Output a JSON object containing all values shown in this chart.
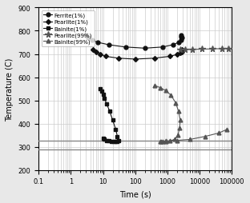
{
  "xlabel": "Time (s)",
  "ylabel": "Temperature (C)",
  "xlim": [
    0.1,
    100000
  ],
  "ylim": [
    200,
    900
  ],
  "yticks": [
    200,
    300,
    400,
    500,
    600,
    700,
    800,
    900
  ],
  "Ms": 325,
  "Mf": 290,
  "ferrite_1pct_t": [
    3.0,
    3.5,
    4.5,
    7.0,
    15.0,
    50.0,
    200.0,
    700.0,
    1500.0,
    2200.0,
    2600.0,
    2800.0,
    2700.0,
    2600.0
  ],
  "ferrite_1pct_T": [
    780,
    770,
    760,
    750,
    740,
    730,
    725,
    730,
    740,
    750,
    760,
    770,
    775,
    780
  ],
  "pearlite_1pct_t": [
    5.0,
    6.0,
    8.0,
    12.0,
    30.0,
    100.0,
    400.0,
    1200.0,
    2000.0,
    2500.0,
    2800.0,
    3000.0,
    2900.0
  ],
  "pearlite_1pct_T": [
    720,
    710,
    700,
    690,
    682,
    678,
    682,
    690,
    698,
    705,
    710,
    715,
    718
  ],
  "bainite_1pct_t": [
    8.0,
    9.0,
    10.0,
    11.0,
    13.0,
    16.0,
    20.0,
    25.0,
    28.0,
    30.0,
    28.0,
    25.0,
    22.0,
    18.0,
    15.0,
    13.0,
    11.0,
    10.0
  ],
  "bainite_1pct_T": [
    550,
    540,
    525,
    510,
    485,
    455,
    415,
    375,
    345,
    325,
    323,
    323,
    323,
    323,
    325,
    328,
    332,
    338
  ],
  "pearlite_99pct_t": [
    2500.0,
    3500.0,
    6000.0,
    12000.0,
    25000.0,
    50000.0,
    80000.0
  ],
  "pearlite_99pct_T": [
    718,
    719,
    720,
    721,
    722,
    723,
    724
  ],
  "bainite_99pct_t": [
    400.0,
    600.0,
    900.0,
    1300.0,
    1800.0,
    2200.0,
    2500.0,
    2400.0,
    2100.0,
    1700.0,
    1200.0,
    900.0,
    700.0,
    600.0,
    650.0,
    900.0,
    2000.0,
    5000.0,
    15000.0,
    40000.0,
    70000.0
  ],
  "bainite_99pct_T": [
    565,
    555,
    542,
    522,
    490,
    455,
    415,
    380,
    350,
    333,
    325,
    323,
    323,
    323,
    323,
    325,
    328,
    332,
    345,
    360,
    375
  ],
  "curve_color": "#111111",
  "curve_color2": "#555555",
  "grid_color": "#cccccc",
  "hline_color": "#888888",
  "bg_color": "#ffffff",
  "fig_bg": "#e8e8e8"
}
